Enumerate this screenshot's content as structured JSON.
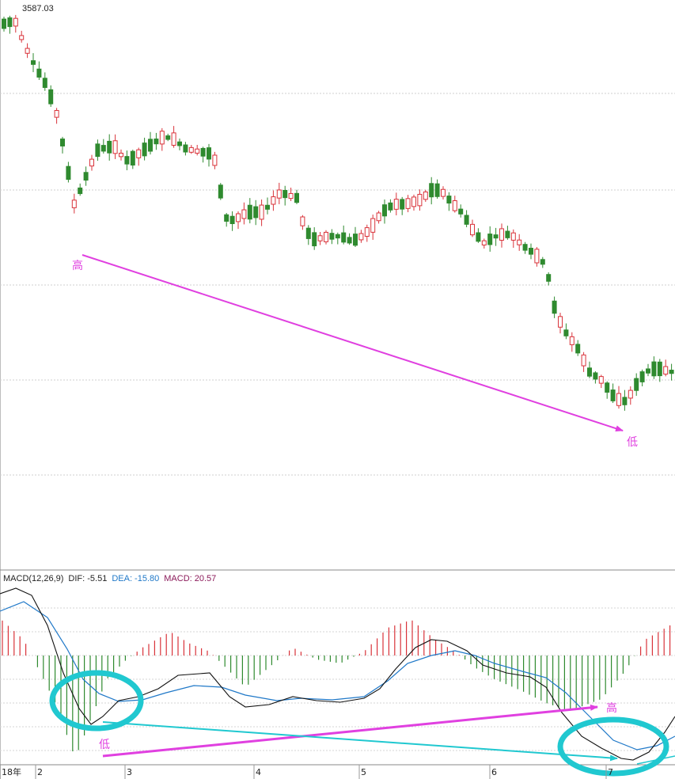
{
  "price_panel": {
    "high_price_label": "3587.03"
  },
  "macd_panel": {
    "indicator_label": "MACD(12,26,9)",
    "dif_label": "DIF: -5.51",
    "dea_label": "DEA: -15.80",
    "macd_label": "MACD: 20.57"
  },
  "annotations": {
    "price_high": "高",
    "price_low": "低",
    "macd_low": "低",
    "macd_high": "高"
  },
  "time_axis": {
    "labels": [
      "18年",
      "2",
      "3",
      "4",
      "5",
      "6",
      "7"
    ]
  },
  "colors": {
    "up": "#d9333a",
    "down": "#2f8a2f",
    "dif": "#111111",
    "dea": "#1f78c8",
    "macd_text": "#8b1a5a",
    "annotation_magenta": "#e040e0",
    "annotation_cyan": "#20c8d0"
  },
  "chart_data": [
    {
      "type": "candlestick",
      "title": "",
      "annotations": [
        "3587.03",
        "高",
        "低"
      ],
      "candles_approx": "price series shown only as candles; no axis values printed"
    },
    {
      "type": "line",
      "title": "MACD(12,26,9)",
      "series": [
        {
          "name": "DIF",
          "last": -5.51
        },
        {
          "name": "DEA",
          "last": -15.8
        },
        {
          "name": "MACD",
          "last": 20.57
        }
      ],
      "x_tick_labels": [
        "18年",
        "2",
        "3",
        "4",
        "5",
        "6",
        "7"
      ]
    }
  ]
}
